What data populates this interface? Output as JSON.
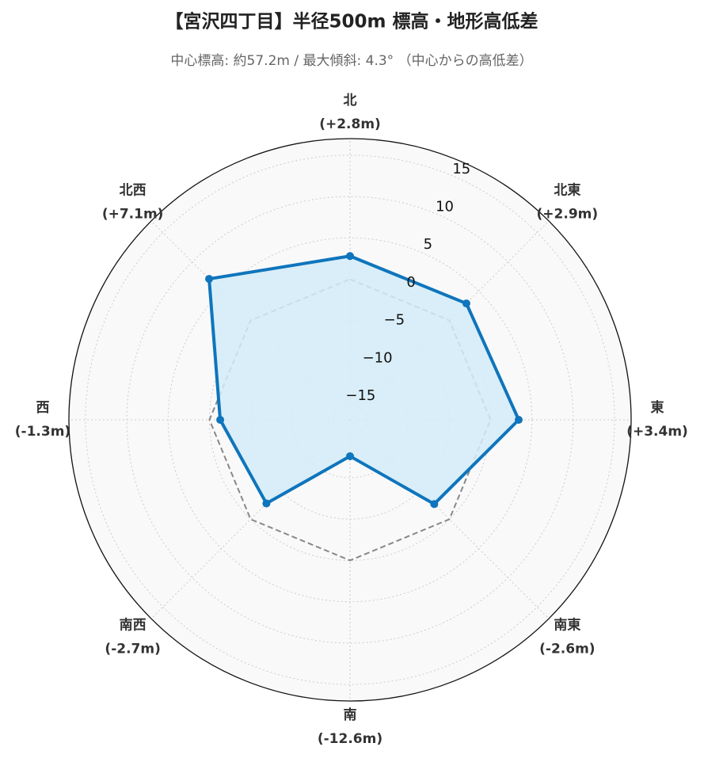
{
  "chart_data": {
    "type": "radar",
    "title": "【宮沢四丁目】半径500m 標高・地形高低差",
    "subtitle": "中心標高: 約57.2m / 最大傾斜: 4.3° （中心からの高低差）",
    "categories": [
      "北",
      "北東",
      "東",
      "南東",
      "南",
      "南西",
      "西",
      "北西"
    ],
    "values": [
      2.8,
      2.9,
      3.4,
      -2.6,
      -12.6,
      -2.7,
      -1.3,
      7.1
    ],
    "value_labels": [
      "(+2.8m)",
      "(+2.9m)",
      "(+3.4m)",
      "(-2.6m)",
      "(-12.6m)",
      "(-2.7m)",
      "(-1.3m)",
      "(+7.1m)"
    ],
    "color": "#0f75bc",
    "fill": "#d3ecf8",
    "baseline": 0,
    "ylim": [
      -17,
      17
    ],
    "yticks": [
      {
        "value": -15,
        "label": "−15"
      },
      {
        "value": -10,
        "label": "−10"
      },
      {
        "value": -5,
        "label": "−5"
      },
      0,
      5,
      10,
      15
    ],
    "grid": true
  }
}
